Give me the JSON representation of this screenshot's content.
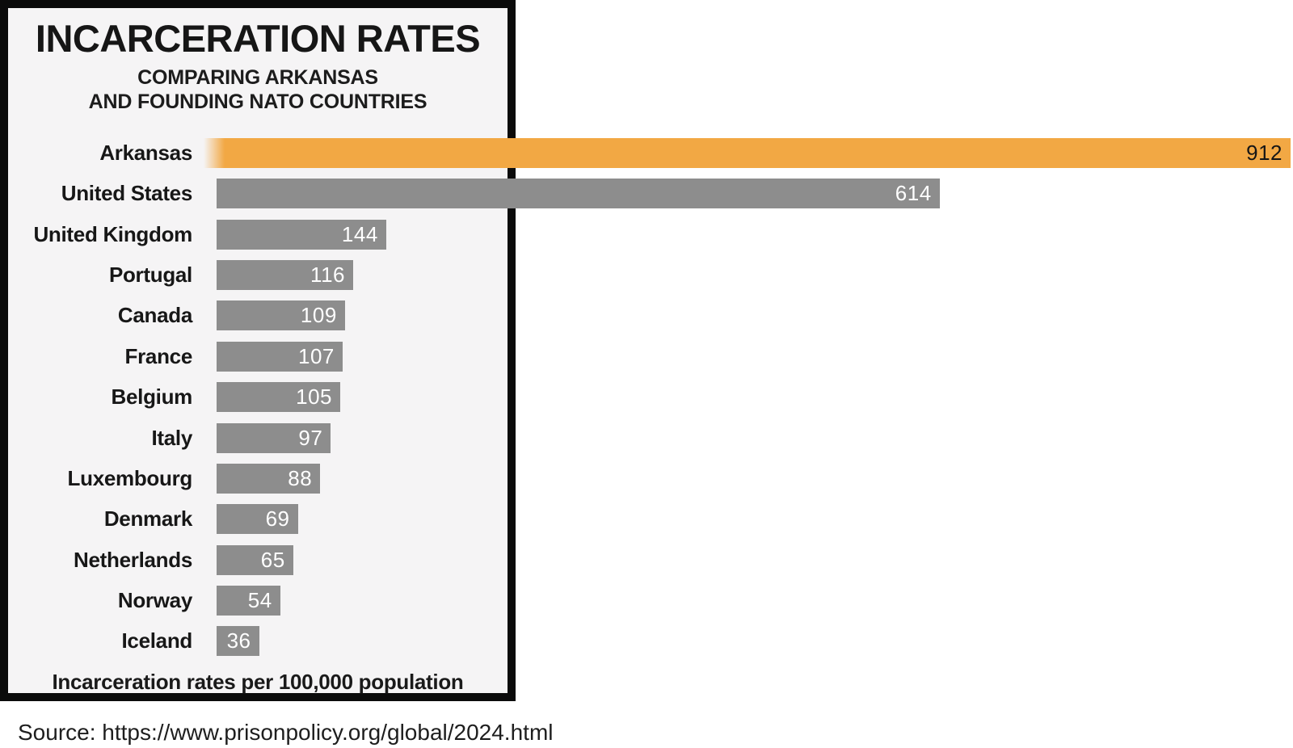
{
  "panel": {
    "title": "INCARCERATION RATES",
    "subtitle_line1": "COMPARING ARKANSAS",
    "subtitle_line2": "AND FOUNDING NATO COUNTRIES",
    "caption": "Incarceration rates per 100,000 population"
  },
  "source_line": "Source: https://www.prisonpolicy.org/global/2024.html",
  "chart_data": {
    "type": "bar",
    "orientation": "horizontal",
    "title": "INCARCERATION RATES",
    "subtitle": "COMPARING ARKANSAS AND FOUNDING NATO COUNTRIES",
    "caption": "Incarceration rates per 100,000 population",
    "source": "Source: https://www.prisonpolicy.org/global/2024.html",
    "categories": [
      "Arkansas",
      "United States",
      "United Kingdom",
      "Portugal",
      "Canada",
      "France",
      "Belgium",
      "Italy",
      "Luxembourg",
      "Denmark",
      "Netherlands",
      "Norway",
      "Iceland"
    ],
    "values": [
      912,
      614,
      144,
      116,
      109,
      107,
      105,
      97,
      88,
      69,
      65,
      54,
      36
    ],
    "value_labels_shown": true,
    "xlim": [
      0,
      912
    ],
    "grid": false,
    "legend": false,
    "highlight_category": "Arkansas",
    "colors": {
      "highlight_bar": "#f2a844",
      "default_bar": "#8d8d8d",
      "value_label_on_default": "#ffffff",
      "value_label_on_highlight": "#161616",
      "panel_background": "#f5f4f5",
      "panel_border": "#0b0b0b",
      "page_background": "#ffffff"
    }
  }
}
